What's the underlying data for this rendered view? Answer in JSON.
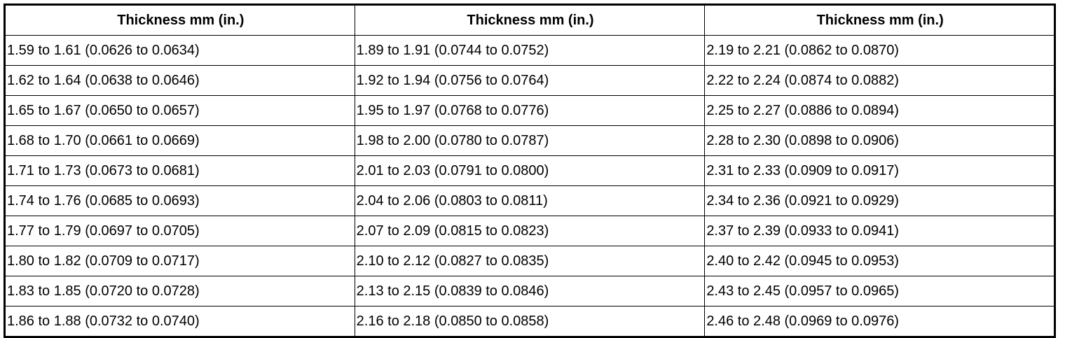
{
  "table": {
    "header": [
      "Thickness mm (in.)",
      "Thickness mm (in.)",
      "Thickness mm (in.)"
    ],
    "rows": [
      [
        "1.59 to 1.61 (0.0626 to 0.0634)",
        "1.89 to 1.91 (0.0744 to 0.0752)",
        "2.19 to 2.21 (0.0862 to 0.0870)"
      ],
      [
        "1.62 to 1.64 (0.0638 to 0.0646)",
        "1.92 to 1.94 (0.0756 to 0.0764)",
        "2.22 to 2.24 (0.0874 to 0.0882)"
      ],
      [
        "1.65 to 1.67 (0.0650 to 0.0657)",
        "1.95 to 1.97 (0.0768 to 0.0776)",
        "2.25 to 2.27 (0.0886 to 0.0894)"
      ],
      [
        "1.68 to 1.70 (0.0661 to 0.0669)",
        "1.98 to 2.00 (0.0780 to 0.0787)",
        "2.28 to 2.30 (0.0898 to 0.0906)"
      ],
      [
        "1.71 to 1.73 (0.0673 to 0.0681)",
        "2.01 to 2.03 (0.0791 to 0.0800)",
        "2.31 to 2.33 (0.0909 to 0.0917)"
      ],
      [
        "1.74 to 1.76 (0.0685 to 0.0693)",
        "2.04 to 2.06 (0.0803 to 0.0811)",
        "2.34 to 2.36 (0.0921 to 0.0929)"
      ],
      [
        "1.77 to 1.79 (0.0697 to 0.0705)",
        "2.07 to 2.09 (0.0815 to 0.0823)",
        "2.37 to 2.39 (0.0933 to 0.0941)"
      ],
      [
        "1.80 to 1.82 (0.0709 to 0.0717)",
        "2.10 to 2.12 (0.0827 to 0.0835)",
        "2.40 to 2.42 (0.0945 to 0.0953)"
      ],
      [
        "1.83 to 1.85 (0.0720 to 0.0728)",
        "2.13 to 2.15 (0.0839 to 0.0846)",
        "2.43 to 2.45 (0.0957 to 0.0965)"
      ],
      [
        "1.86 to 1.88 (0.0732 to 0.0740)",
        "2.16 to 2.18 (0.0850 to 0.0858)",
        "2.46 to 2.48 (0.0969 to 0.0976)"
      ]
    ]
  }
}
